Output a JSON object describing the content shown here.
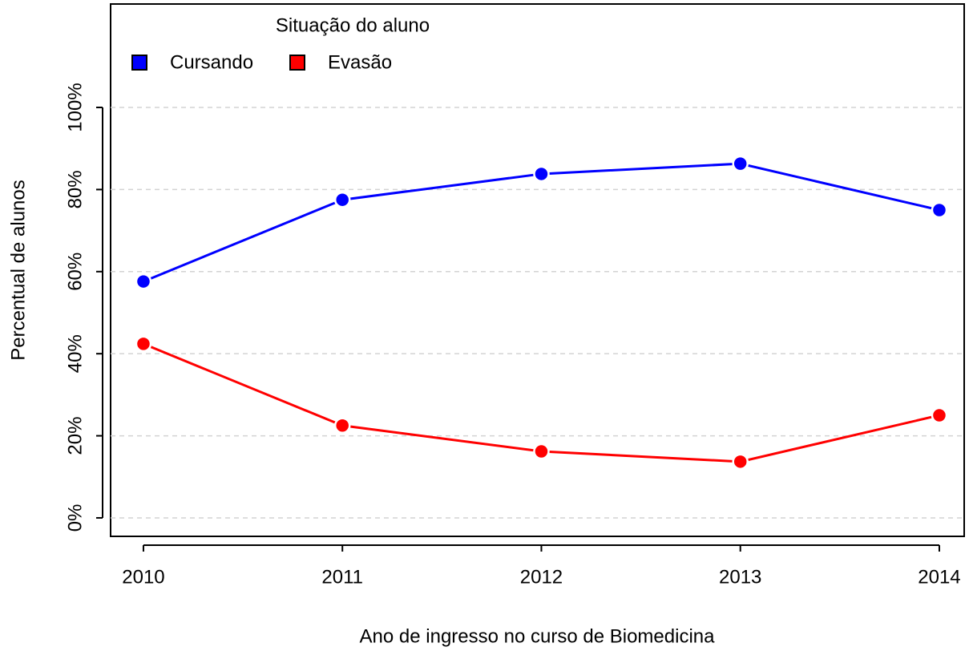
{
  "chart_data": {
    "type": "line",
    "legend_title": "Situação do aluno",
    "x_label": "Ano de ingresso no curso de Biomedicina",
    "y_label": "Percentual de alunos",
    "x": [
      2010,
      2011,
      2012,
      2013,
      2014
    ],
    "series": [
      {
        "name": "Cursando",
        "color": "#0000ff",
        "values": [
          57.6,
          77.5,
          83.8,
          86.3,
          75.0
        ]
      },
      {
        "name": "Evasão",
        "color": "#ff0000",
        "values": [
          42.4,
          22.5,
          16.2,
          13.7,
          25.0
        ]
      }
    ],
    "xlim": [
      2009.835,
      2014.125
    ],
    "xticks": [
      2010,
      2011,
      2012,
      2013,
      2014
    ],
    "ylim": [
      -4.5,
      125.2
    ],
    "yticks": [
      {
        "value": 0,
        "label": "0%"
      },
      {
        "value": 20,
        "label": "20%"
      },
      {
        "value": 40,
        "label": "40%"
      },
      {
        "value": 60,
        "label": "60%"
      },
      {
        "value": 80,
        "label": "80%"
      },
      {
        "value": 100,
        "label": "100%"
      }
    ],
    "grid": true
  }
}
